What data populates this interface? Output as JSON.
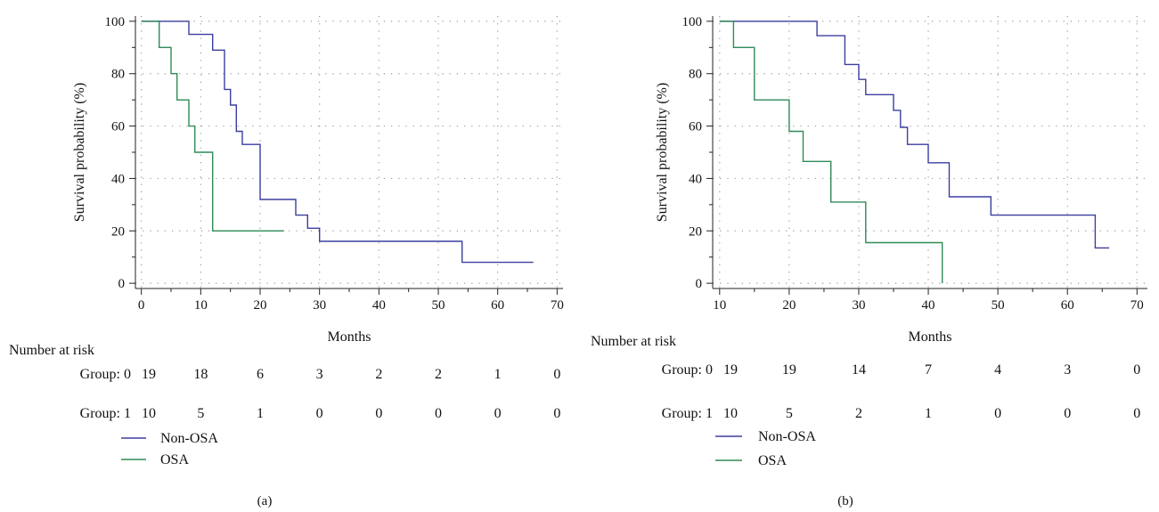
{
  "chart_data": [
    {
      "type": "line",
      "subtype": "kaplan-meier",
      "panel_label": "(a)",
      "xlabel": "Months",
      "ylabel": "Survival probability (%)",
      "xlim": [
        -1,
        71
      ],
      "ylim": [
        -2,
        102
      ],
      "xticks": [
        0,
        10,
        20,
        30,
        40,
        50,
        60,
        70
      ],
      "yticks": [
        0,
        20,
        40,
        60,
        80,
        100
      ],
      "grid": "dotted",
      "legend_position": "below",
      "series": [
        {
          "name": "Non-OSA",
          "color": "#3b3f9e",
          "x": [
            0,
            8,
            8,
            12,
            12,
            14,
            14,
            15,
            15,
            16,
            16,
            17,
            17,
            20,
            20,
            26,
            26,
            28,
            28,
            30,
            30,
            54,
            54,
            66
          ],
          "y": [
            100,
            100,
            95,
            95,
            89,
            89,
            74,
            74,
            68,
            68,
            58,
            58,
            53,
            53,
            32,
            32,
            26,
            26,
            21,
            21,
            16,
            16,
            8,
            8
          ]
        },
        {
          "name": "OSA",
          "color": "#2e8b57",
          "x": [
            0,
            3,
            3,
            5,
            5,
            6,
            6,
            8,
            8,
            9,
            9,
            12,
            12,
            24
          ],
          "y": [
            100,
            100,
            90,
            90,
            80,
            80,
            70,
            70,
            60,
            60,
            50,
            50,
            20,
            20
          ]
        }
      ],
      "risk_table": {
        "title": "Number at risk",
        "rows": [
          {
            "label": "Group: 0",
            "values": [
              "19",
              "18",
              "6",
              "3",
              "2",
              "2",
              "1",
              "0"
            ]
          },
          {
            "label": "Group: 1",
            "values": [
              "10",
              "5",
              "1",
              "0",
              "0",
              "0",
              "0",
              "0"
            ]
          }
        ]
      }
    },
    {
      "type": "line",
      "subtype": "kaplan-meier",
      "panel_label": "(b)",
      "xlabel": "Months",
      "ylabel": "Survival probability (%)",
      "xlim": [
        9,
        71.5
      ],
      "ylim": [
        -2,
        102
      ],
      "xticks": [
        10,
        20,
        30,
        40,
        50,
        60,
        70
      ],
      "yticks": [
        0,
        20,
        40,
        60,
        80,
        100
      ],
      "grid": "dotted",
      "legend_position": "below",
      "series": [
        {
          "name": "Non-OSA",
          "color": "#3b3f9e",
          "x": [
            10,
            24,
            24,
            28,
            28,
            30,
            30,
            31,
            31,
            35,
            35,
            36,
            36,
            37,
            37,
            40,
            40,
            43,
            43,
            49,
            49,
            64,
            64,
            66
          ],
          "y": [
            100,
            100,
            94.5,
            94.5,
            83.5,
            83.5,
            77.8,
            77.8,
            72,
            72,
            66,
            66,
            59.5,
            59.5,
            53,
            53,
            46,
            46,
            33,
            33,
            26,
            26,
            13.5,
            13.5
          ]
        },
        {
          "name": "OSA",
          "color": "#2e8b57",
          "x": [
            10,
            12,
            12,
            15,
            15,
            20,
            20,
            22,
            22,
            26,
            26,
            31,
            31,
            42,
            42
          ],
          "y": [
            100,
            100,
            90,
            90,
            70,
            70,
            58,
            58,
            46.5,
            46.5,
            31,
            31,
            15.5,
            15.5,
            0
          ]
        }
      ],
      "risk_table": {
        "title": "Number at risk",
        "rows": [
          {
            "label": "Group: 0",
            "values": [
              "19",
              "19",
              "14",
              "7",
              "4",
              "3",
              "0"
            ]
          },
          {
            "label": "Group: 1",
            "values": [
              "10",
              "5",
              "2",
              "1",
              "0",
              "0",
              "0"
            ]
          }
        ]
      }
    }
  ]
}
